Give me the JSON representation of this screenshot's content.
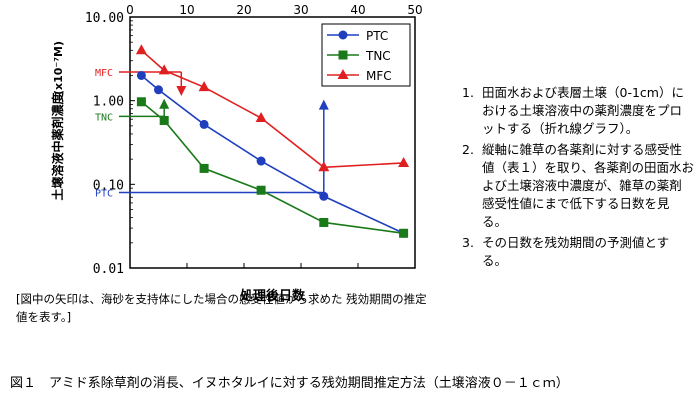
{
  "chart_data": {
    "type": "line",
    "xlabel": "処理後日数",
    "ylabel": "土壌溶液中薬剤濃度",
    "ylabel_unit": "(x10⁻⁷M)",
    "xlim": [
      0,
      50
    ],
    "ylim": [
      0.01,
      10
    ],
    "yscale": "log",
    "x_ticks": [
      "0",
      "10",
      "20",
      "30",
      "40",
      "50"
    ],
    "y_ticks": [
      "10.00",
      "1.00",
      "0.10",
      "0.01"
    ],
    "grid": false,
    "legend_position": "top-right",
    "series": [
      {
        "name": "PTC",
        "color": "#1f3fbf",
        "marker": "circle",
        "x": [
          2,
          5,
          13,
          23,
          34,
          48
        ],
        "y": [
          2.0,
          1.35,
          0.52,
          0.19,
          0.072,
          0.026
        ]
      },
      {
        "name": "TNC",
        "color": "#1a7a1a",
        "marker": "square",
        "x": [
          2,
          6,
          13,
          23,
          34,
          48
        ],
        "y": [
          0.97,
          0.58,
          0.155,
          0.085,
          0.035,
          0.026
        ]
      },
      {
        "name": "MFC",
        "color": "#e02020",
        "marker": "triangle",
        "x": [
          2,
          6,
          13,
          23,
          34,
          48
        ],
        "y": [
          4.0,
          2.3,
          1.45,
          0.62,
          0.16,
          0.18
        ]
      }
    ],
    "sensitivity_labels": [
      {
        "label": "MFC",
        "y": 2.2,
        "color": "#e02020"
      },
      {
        "label": "TNC",
        "y": 0.65,
        "color": "#1a7a1a"
      },
      {
        "label": "PTC",
        "y": 0.08,
        "color": "#1f3fbf"
      }
    ],
    "estimate_arrows": [
      {
        "series": "MFC",
        "x": 9,
        "y": 2.2,
        "direction": "down"
      },
      {
        "series": "TNC",
        "x": 6,
        "y": 0.65,
        "direction": "up"
      },
      {
        "series": "PTC",
        "x": 34,
        "y": 0.08,
        "direction": "up"
      }
    ]
  },
  "method_steps": [
    {
      "num": "1.",
      "text": "田面水および表層土壌（0-1cm）における土壌溶液中の薬剤濃度をプロットする（折れ線グラフ）。"
    },
    {
      "num": "2.",
      "text": "縦軸に雑草の各薬剤に対する感受性値（表１）を取り、各薬剤の田面水および土壌溶液中濃度が、雑草の薬剤感受性値にまで低下する日数を見る。"
    },
    {
      "num": "3.",
      "text": "その日数を残効期間の予測値とする。"
    }
  ],
  "note": "[図中の矢印は、海砂を支持体にした場合の感受性値から求めた 残効期間の推定値を表す。]",
  "caption": "図１　アミド系除草剤の消長、イヌホタルイに対する残効期間推定方法（土壌溶液０－１ｃｍ）"
}
